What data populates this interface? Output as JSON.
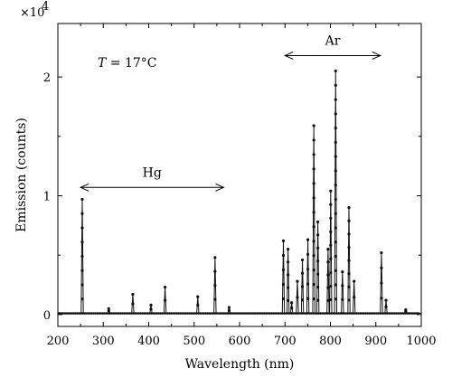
{
  "chart_data": {
    "type": "line",
    "title": "",
    "xlabel": "Wavelength (nm)",
    "ylabel": "Emission (counts)",
    "xlim": [
      200,
      1000
    ],
    "ylim": [
      -0.1,
      2.45
    ],
    "x_ticks": [
      200,
      300,
      400,
      500,
      600,
      700,
      800,
      900,
      1000
    ],
    "x_tick_labels": [
      "200",
      "300",
      "400",
      "500",
      "600",
      "700",
      "800",
      "900",
      "1000"
    ],
    "y_ticks": [
      0,
      1,
      2
    ],
    "y_tick_labels": [
      "0",
      "1",
      "2"
    ],
    "y_multiplier": "×10",
    "y_multiplier_exp": "4",
    "grid": false,
    "legend": "none",
    "marker": "dot",
    "baseline": 0.01,
    "peaks": [
      {
        "x": 253.7,
        "y": 0.97
      },
      {
        "x": 312,
        "y": 0.05
      },
      {
        "x": 365,
        "y": 0.17
      },
      {
        "x": 405,
        "y": 0.08
      },
      {
        "x": 436,
        "y": 0.23
      },
      {
        "x": 508,
        "y": 0.15
      },
      {
        "x": 546,
        "y": 0.48
      },
      {
        "x": 577,
        "y": 0.06
      },
      {
        "x": 696.5,
        "y": 0.62
      },
      {
        "x": 706.7,
        "y": 0.55
      },
      {
        "x": 714.7,
        "y": 0.1
      },
      {
        "x": 727.3,
        "y": 0.28
      },
      {
        "x": 738.4,
        "y": 0.46
      },
      {
        "x": 750.4,
        "y": 0.63
      },
      {
        "x": 763.5,
        "y": 1.59
      },
      {
        "x": 772.4,
        "y": 0.78
      },
      {
        "x": 794.8,
        "y": 0.55
      },
      {
        "x": 800.6,
        "y": 1.04
      },
      {
        "x": 811.5,
        "y": 2.05
      },
      {
        "x": 826.5,
        "y": 0.36
      },
      {
        "x": 840.8,
        "y": 0.9
      },
      {
        "x": 852.1,
        "y": 0.28
      },
      {
        "x": 912.3,
        "y": 0.52
      },
      {
        "x": 922.4,
        "y": 0.12
      },
      {
        "x": 965.8,
        "y": 0.04
      }
    ],
    "annotations": [
      {
        "text": "Hg",
        "from": 250,
        "to": 565,
        "y": 1.07
      },
      {
        "text": "Ar",
        "from": 700,
        "to": 910,
        "y": 2.18
      }
    ],
    "temperature_label": {
      "italic": "T",
      "rest": " = 17°C"
    }
  }
}
